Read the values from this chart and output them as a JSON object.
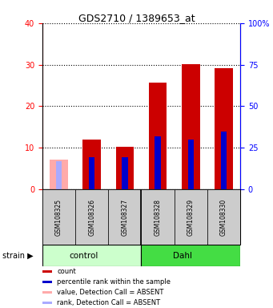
{
  "title": "GDS2710 / 1389653_at",
  "samples": [
    "GSM108325",
    "GSM108326",
    "GSM108327",
    "GSM108328",
    "GSM108329",
    "GSM108330"
  ],
  "count_values": [
    null,
    12.0,
    10.2,
    25.7,
    30.2,
    29.2
  ],
  "rank_values": [
    null,
    7.8,
    7.8,
    12.8,
    12.0,
    14.0
  ],
  "absent_value": [
    7.2,
    null,
    null,
    null,
    null,
    null
  ],
  "absent_rank": [
    6.8,
    null,
    null,
    null,
    null,
    null
  ],
  "ylim_left": [
    0,
    40
  ],
  "ylim_right": [
    0,
    100
  ],
  "yticks_left": [
    0,
    10,
    20,
    30,
    40
  ],
  "yticks_right": [
    0,
    25,
    50,
    75,
    100
  ],
  "ytick_labels_right": [
    "0",
    "25",
    "50",
    "75",
    "100%"
  ],
  "color_count": "#cc0000",
  "color_rank": "#0000cc",
  "color_absent_value": "#ffaaaa",
  "color_absent_rank": "#aaaaff",
  "color_control_bg": "#ccffcc",
  "color_dahl_bg": "#44dd44",
  "color_sample_bg": "#cccccc",
  "wide_bar_width": 0.55,
  "narrow_bar_width": 0.18,
  "group_split": 3
}
